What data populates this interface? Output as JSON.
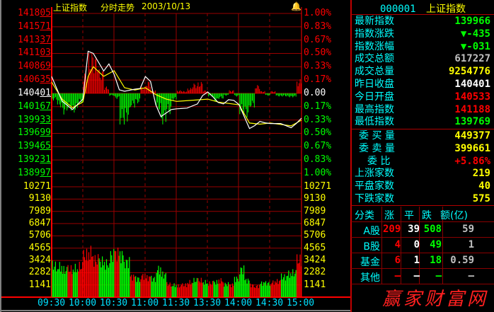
{
  "header": {
    "name": "上证指数",
    "mode": "分时走势",
    "date": "2003/10/13",
    "alarm_icon": "bell-icon"
  },
  "colors": {
    "up": "#ff0000",
    "down": "#00ff00",
    "flat": "#ffffff",
    "grid": "#9a0000",
    "label": "#00ffff",
    "volume_label": "#ffff00"
  },
  "price_labels": [
    {
      "t": "141805",
      "c": "#ff0000"
    },
    {
      "t": "141571",
      "c": "#ff0000"
    },
    {
      "t": "141337",
      "c": "#ff0000"
    },
    {
      "t": "141103",
      "c": "#ff0000"
    },
    {
      "t": "140869",
      "c": "#ff0000"
    },
    {
      "t": "140635",
      "c": "#ff0000"
    },
    {
      "t": "140401",
      "c": "#ffffff"
    },
    {
      "t": "140167",
      "c": "#00ff00"
    },
    {
      "t": "139933",
      "c": "#00ff00"
    },
    {
      "t": "139699",
      "c": "#00ff00"
    },
    {
      "t": "139465",
      "c": "#00ff00"
    },
    {
      "t": "139231",
      "c": "#00ff00"
    },
    {
      "t": "138997",
      "c": "#00ff00"
    }
  ],
  "pct_labels": [
    {
      "t": "1.00%",
      "c": "#ff0000"
    },
    {
      "t": "0.83%",
      "c": "#ff0000"
    },
    {
      "t": "0.67%",
      "c": "#ff0000"
    },
    {
      "t": "0.50%",
      "c": "#ff0000"
    },
    {
      "t": "0.33%",
      "c": "#ff0000"
    },
    {
      "t": "0.17%",
      "c": "#ff0000"
    },
    {
      "t": "0.00",
      "c": "#ffffff"
    },
    {
      "t": "0.17%",
      "c": "#00ff00"
    },
    {
      "t": "0.33%",
      "c": "#00ff00"
    },
    {
      "t": "0.50%",
      "c": "#00ff00"
    },
    {
      "t": "0.67%",
      "c": "#00ff00"
    },
    {
      "t": "0.83%",
      "c": "#00ff00"
    },
    {
      "t": "1.00%",
      "c": "#00ff00"
    }
  ],
  "volume_labels": [
    "10271",
    "9130",
    "7989",
    "6847",
    "5706",
    "4565",
    "3424",
    "2282",
    "1141"
  ],
  "time_labels": [
    "09:30",
    "10:00",
    "10:30",
    "11:00",
    "11:30",
    "13:30",
    "14:00",
    "14:30",
    "15:00"
  ],
  "chart_data": {
    "type": "line",
    "prev_close": 140401,
    "price_range": [
      138997,
      141805
    ],
    "volume_range": [
      0,
      10271
    ],
    "price": [
      [
        "09:30",
        140697
      ],
      [
        "09:40",
        140265
      ],
      [
        "09:50",
        140118
      ],
      [
        "10:00",
        140302
      ],
      [
        "10:05",
        141140
      ],
      [
        "10:10",
        141103
      ],
      [
        "10:20",
        140795
      ],
      [
        "10:25",
        140918
      ],
      [
        "10:30",
        140734
      ],
      [
        "10:35",
        140463
      ],
      [
        "10:40",
        140438
      ],
      [
        "10:50",
        140475
      ],
      [
        "10:55",
        140487
      ],
      [
        "11:00",
        140697
      ],
      [
        "11:05",
        140610
      ],
      [
        "11:10",
        140204
      ],
      [
        "11:15",
        139994
      ],
      [
        "11:20",
        140056
      ],
      [
        "11:25",
        140118
      ],
      [
        "11:30",
        140130
      ],
      [
        "13:10",
        140142
      ],
      [
        "13:20",
        140216
      ],
      [
        "13:25",
        140364
      ],
      [
        "13:30",
        140426
      ],
      [
        "13:35",
        140339
      ],
      [
        "13:40",
        140241
      ],
      [
        "13:45",
        140216
      ],
      [
        "13:50",
        140290
      ],
      [
        "13:55",
        140278
      ],
      [
        "14:00",
        140204
      ],
      [
        "14:05",
        139994
      ],
      [
        "14:10",
        139785
      ],
      [
        "14:15",
        139834
      ],
      [
        "14:20",
        139908
      ],
      [
        "14:25",
        139884
      ],
      [
        "14:30",
        139871
      ],
      [
        "14:40",
        139871
      ],
      [
        "14:45",
        139834
      ],
      [
        "14:50",
        139797
      ],
      [
        "14:55",
        139871
      ],
      [
        "15:00",
        139966
      ]
    ],
    "average": [
      [
        "09:30",
        140600
      ],
      [
        "09:40",
        140300
      ],
      [
        "09:50",
        140150
      ],
      [
        "10:00",
        140250
      ],
      [
        "10:05",
        140700
      ],
      [
        "10:10",
        140869
      ],
      [
        "10:20",
        140700
      ],
      [
        "10:30",
        140800
      ],
      [
        "10:40",
        140500
      ],
      [
        "10:50",
        140460
      ],
      [
        "11:00",
        140500
      ],
      [
        "11:10",
        140380
      ],
      [
        "11:20",
        140300
      ],
      [
        "11:30",
        140260
      ],
      [
        "13:30",
        140300
      ],
      [
        "13:40",
        140250
      ],
      [
        "14:00",
        140200
      ],
      [
        "14:10",
        139880
      ],
      [
        "14:20",
        139860
      ],
      [
        "14:30",
        139880
      ],
      [
        "14:50",
        139830
      ],
      [
        "15:00",
        139930
      ]
    ],
    "breadth_pct": [
      -0.09,
      -0.18,
      -0.27,
      -0.22,
      -0.25,
      -0.13,
      0.27,
      0.53,
      0.49,
      0.31,
      0.09,
      -0.03,
      -0.07,
      -0.4,
      -0.36,
      -0.18,
      -0.13,
      0.09,
      0.16,
      0.04,
      -0.22,
      -0.4,
      -0.27,
      -0.09,
      0.04,
      0.03,
      0.07,
      0.13,
      0.15,
      0.04,
      -0.04,
      -0.11,
      -0.07,
      -0.03,
      0.04,
      -0.04,
      -0.27,
      -0.31,
      -0.18,
      0.11,
      0.03,
      -0.03,
      0.03,
      -0.04,
      -0.04,
      -0.05,
      -0.05,
      0.18
    ],
    "volume": [
      [
        3400,
        "d"
      ],
      [
        3300,
        "d"
      ],
      [
        2900,
        "d"
      ],
      [
        3000,
        "u"
      ],
      [
        3100,
        "d"
      ],
      [
        3300,
        "u"
      ],
      [
        4500,
        "u"
      ],
      [
        4800,
        "u"
      ],
      [
        4000,
        "u"
      ],
      [
        3800,
        "d"
      ],
      [
        3600,
        "d"
      ],
      [
        4500,
        "d"
      ],
      [
        4700,
        "u"
      ],
      [
        4500,
        "d"
      ],
      [
        3800,
        "d"
      ],
      [
        2200,
        "u"
      ],
      [
        2000,
        "d"
      ],
      [
        2300,
        "u"
      ],
      [
        2100,
        "u"
      ],
      [
        2000,
        "d"
      ],
      [
        3000,
        "d"
      ],
      [
        2400,
        "d"
      ],
      [
        1400,
        "u"
      ],
      [
        1300,
        "d"
      ],
      [
        1200,
        "u"
      ],
      [
        1300,
        "u"
      ],
      [
        1600,
        "u"
      ],
      [
        1800,
        "d"
      ],
      [
        1800,
        "u"
      ],
      [
        1600,
        "d"
      ],
      [
        1500,
        "u"
      ],
      [
        1600,
        "d"
      ],
      [
        1800,
        "u"
      ],
      [
        1400,
        "d"
      ],
      [
        1300,
        "u"
      ],
      [
        2000,
        "d"
      ],
      [
        3000,
        "d"
      ],
      [
        1800,
        "d"
      ],
      [
        1300,
        "u"
      ],
      [
        1200,
        "u"
      ],
      [
        1500,
        "d"
      ],
      [
        1500,
        "d"
      ],
      [
        1600,
        "u"
      ],
      [
        1700,
        "u"
      ],
      [
        2200,
        "d"
      ],
      [
        2500,
        "d"
      ],
      [
        2600,
        "d"
      ],
      [
        4000,
        "u"
      ]
    ]
  },
  "panel": {
    "code": "000001",
    "name": "上证指数",
    "stats": [
      {
        "k": "最新指数",
        "v": "139966",
        "c": "#00ff00"
      },
      {
        "k": "指数涨跌",
        "v": "▼-435",
        "c": "#00ff00"
      },
      {
        "k": "指数涨幅",
        "v": "▼-031",
        "c": "#00ff00"
      },
      {
        "k": "成交总额",
        "v": "617227",
        "c": "#c0c0c0"
      },
      {
        "k": "成交总量",
        "v": "9254776",
        "c": "#ffff00"
      },
      {
        "k": "昨日收盘",
        "v": "140401",
        "c": "#ffffff"
      },
      {
        "k": "今日开盘",
        "v": "140533",
        "c": "#ff0000"
      },
      {
        "k": "最高指数",
        "v": "141188",
        "c": "#ff0000"
      },
      {
        "k": "最低指数",
        "v": "139769",
        "c": "#00ff00"
      }
    ],
    "orders": [
      {
        "k": "委 买 量",
        "v": "449377",
        "c": "#ffff00"
      },
      {
        "k": "委 卖 量",
        "v": "399661",
        "c": "#ffff00"
      },
      {
        "k": "委 比",
        "v": "+5.86%",
        "c": "#ff0000"
      },
      {
        "k": "上涨家数",
        "v": "219",
        "c": "#ffff00"
      },
      {
        "k": "平盘家数",
        "v": "40",
        "c": "#ffff00"
      },
      {
        "k": "下跌家数",
        "v": "575",
        "c": "#ffff00"
      }
    ],
    "table": {
      "headers": [
        "分类",
        "涨",
        "平",
        "跌",
        "额(亿)"
      ],
      "rows": [
        [
          "A股",
          "209",
          "39",
          "508",
          "59"
        ],
        [
          "B股",
          "4",
          "0",
          "49",
          "1"
        ],
        [
          "基金",
          "6",
          "1",
          "18",
          "0.59"
        ],
        [
          "其他",
          "—",
          "—",
          "—",
          "—"
        ]
      ]
    },
    "logo": "赢家财富网"
  }
}
